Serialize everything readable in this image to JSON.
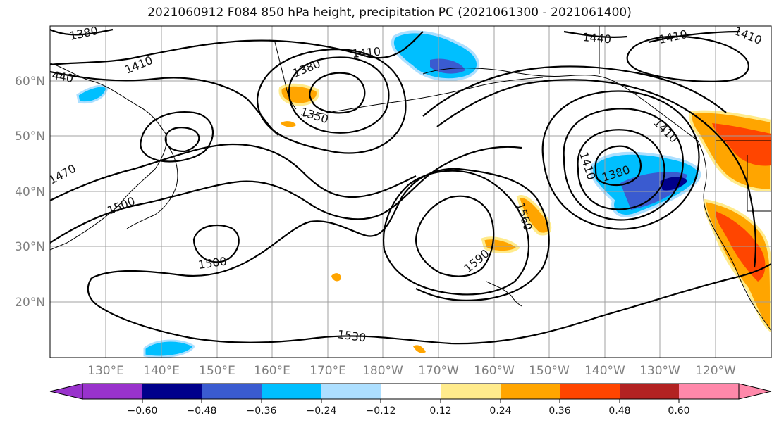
{
  "title": "2021060912 F084 850 hPa height, precipitation PC (2021061300 - 2021061400)",
  "map": {
    "lat_labels": [
      "60°N",
      "50°N",
      "40°N",
      "30°N",
      "20°N"
    ],
    "lon_labels": [
      "130°E",
      "140°E",
      "150°E",
      "160°E",
      "170°E",
      "180°W",
      "170°W",
      "160°W",
      "150°W",
      "140°W",
      "130°W",
      "120°W"
    ],
    "contour_labels": [
      "1380",
      "1410",
      "440",
      "1470",
      "1500",
      "1410",
      "1380",
      "1350",
      "1500",
      "1530",
      "1560",
      "1590",
      "1440",
      "1410",
      "1410",
      "1380",
      "1410",
      "1410"
    ],
    "colors": {
      "land_border": "#000000",
      "grid": "#a0a0a0",
      "contour": "#000000"
    }
  },
  "colorbar": {
    "ticks": [
      "−0.60",
      "−0.48",
      "−0.36",
      "−0.24",
      "−0.12",
      "0.12",
      "0.24",
      "0.36",
      "0.48",
      "0.60"
    ],
    "colors": [
      "#9932CC",
      "#00008B",
      "#3A5BD0",
      "#00BFFF",
      "#ADDFFF",
      "#FFFFFF",
      "#FFEB8C",
      "#FFA500",
      "#FF4500",
      "#B22222",
      "#FF88AA"
    ]
  }
}
